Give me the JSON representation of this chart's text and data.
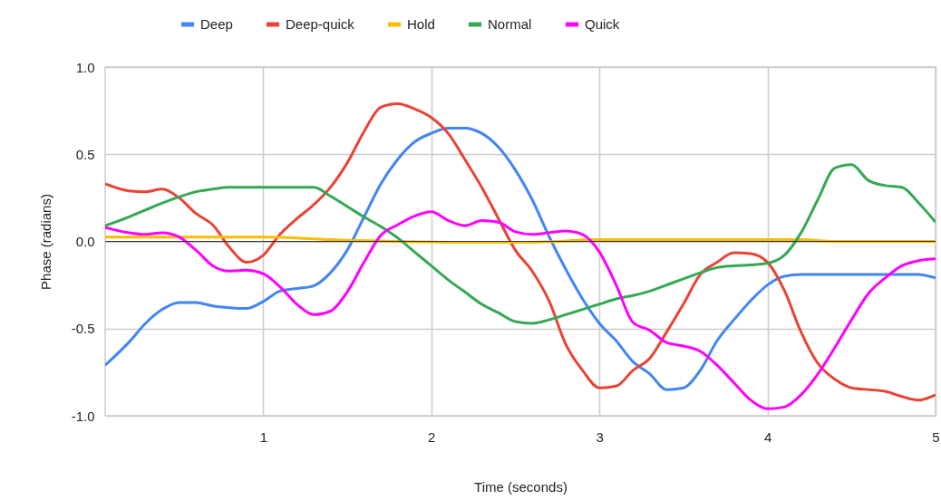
{
  "chart_data": {
    "type": "line",
    "xlabel": "Time (seconds)",
    "ylabel": "Phase (radians)",
    "x": [
      0.06,
      0.2,
      0.3,
      0.4,
      0.5,
      0.6,
      0.7,
      0.8,
      0.9,
      1.0,
      1.1,
      1.2,
      1.3,
      1.4,
      1.5,
      1.6,
      1.7,
      1.8,
      1.9,
      2.0,
      2.1,
      2.2,
      2.3,
      2.4,
      2.5,
      2.6,
      2.7,
      2.8,
      2.9,
      3.0,
      3.1,
      3.2,
      3.3,
      3.4,
      3.5,
      3.6,
      3.7,
      3.8,
      3.9,
      4.0,
      4.1,
      4.2,
      4.3,
      4.4,
      4.5,
      4.6,
      4.7,
      4.8,
      4.9,
      5.0
    ],
    "series": [
      {
        "name": "Deep",
        "color": "#4285f4",
        "values": [
          -0.71,
          -0.58,
          -0.47,
          -0.39,
          -0.35,
          -0.35,
          -0.37,
          -0.38,
          -0.385,
          -0.345,
          -0.285,
          -0.27,
          -0.255,
          -0.18,
          -0.05,
          0.14,
          0.33,
          0.47,
          0.57,
          0.62,
          0.65,
          0.65,
          0.62,
          0.54,
          0.41,
          0.24,
          0.03,
          -0.16,
          -0.33,
          -0.47,
          -0.57,
          -0.69,
          -0.76,
          -0.85,
          -0.84,
          -0.74,
          -0.57,
          -0.45,
          -0.34,
          -0.25,
          -0.2,
          -0.19,
          -0.19,
          -0.19,
          -0.19,
          -0.19,
          -0.19,
          -0.19,
          -0.19,
          -0.21
        ]
      },
      {
        "name": "Deep-quick",
        "color": "#ea4335",
        "values": [
          0.33,
          0.29,
          0.285,
          0.3,
          0.25,
          0.16,
          0.095,
          -0.035,
          -0.12,
          -0.08,
          0.04,
          0.13,
          0.21,
          0.31,
          0.45,
          0.63,
          0.77,
          0.79,
          0.76,
          0.71,
          0.62,
          0.47,
          0.31,
          0.13,
          -0.05,
          -0.17,
          -0.34,
          -0.59,
          -0.74,
          -0.84,
          -0.83,
          -0.74,
          -0.67,
          -0.52,
          -0.36,
          -0.19,
          -0.12,
          -0.065,
          -0.07,
          -0.12,
          -0.28,
          -0.52,
          -0.7,
          -0.79,
          -0.84,
          -0.85,
          -0.86,
          -0.89,
          -0.91,
          -0.88
        ]
      },
      {
        "name": "Hold",
        "color": "#fbbc04",
        "x": [
          0.06,
          0.5,
          1.0,
          1.2,
          1.4,
          1.8,
          2.2,
          2.6,
          3.0,
          3.5,
          4.0,
          4.2,
          4.4,
          5.0
        ],
        "values": [
          0.025,
          0.025,
          0.025,
          0.02,
          0.01,
          0.0,
          -0.005,
          -0.005,
          0.01,
          0.01,
          0.01,
          0.01,
          0.0,
          0.0
        ]
      },
      {
        "name": "Normal",
        "color": "#34a853",
        "values": [
          0.09,
          0.14,
          0.18,
          0.22,
          0.255,
          0.285,
          0.3,
          0.31,
          0.31,
          0.31,
          0.31,
          0.31,
          0.31,
          0.26,
          0.2,
          0.14,
          0.085,
          0.02,
          -0.06,
          -0.14,
          -0.22,
          -0.29,
          -0.36,
          -0.41,
          -0.46,
          -0.47,
          -0.45,
          -0.42,
          -0.39,
          -0.36,
          -0.33,
          -0.31,
          -0.285,
          -0.25,
          -0.215,
          -0.18,
          -0.15,
          -0.14,
          -0.135,
          -0.125,
          -0.08,
          0.05,
          0.24,
          0.42,
          0.44,
          0.35,
          0.32,
          0.31,
          0.22,
          0.11
        ]
      },
      {
        "name": "Quick",
        "color": "#ff00ff",
        "values": [
          0.08,
          0.05,
          0.04,
          0.05,
          0.025,
          -0.05,
          -0.14,
          -0.17,
          -0.165,
          -0.185,
          -0.26,
          -0.36,
          -0.42,
          -0.4,
          -0.29,
          -0.12,
          0.035,
          0.095,
          0.145,
          0.17,
          0.12,
          0.09,
          0.12,
          0.11,
          0.055,
          0.04,
          0.05,
          0.06,
          0.04,
          -0.06,
          -0.25,
          -0.465,
          -0.51,
          -0.58,
          -0.6,
          -0.63,
          -0.71,
          -0.81,
          -0.91,
          -0.96,
          -0.95,
          -0.88,
          -0.76,
          -0.61,
          -0.45,
          -0.3,
          -0.21,
          -0.14,
          -0.11,
          -0.1
        ]
      }
    ],
    "xlim": [
      0.06,
      5
    ],
    "xticks": [
      1,
      2,
      3,
      4,
      5
    ],
    "ylim": [
      -1,
      1
    ],
    "yticks": [
      {
        "value": -1,
        "label": "-1.0"
      },
      {
        "value": -0.5,
        "label": "-0.5"
      },
      {
        "value": 0,
        "label": "0.0"
      },
      {
        "value": 0.5,
        "label": "0.5"
      },
      {
        "value": 1,
        "label": "1.0"
      }
    ],
    "ref_lines": [
      {
        "axis": "y",
        "value": 0,
        "color": "#333333"
      }
    ],
    "grid": true,
    "legend": "top",
    "marker": "none",
    "line_style": "solid"
  }
}
